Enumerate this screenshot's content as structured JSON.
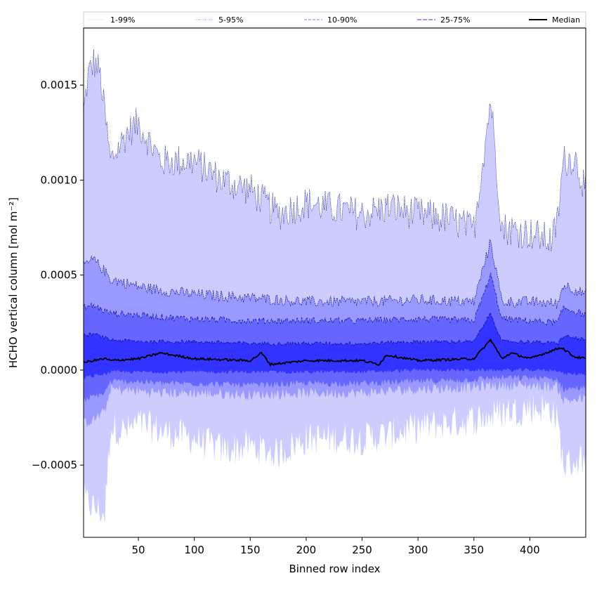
{
  "chart_data": {
    "type": "area",
    "title": "",
    "xlabel": "Binned row index",
    "ylabel": "HCHO vertical column [mol m⁻²]",
    "xlim": [
      1,
      450
    ],
    "ylim": [
      -0.00088,
      0.0018
    ],
    "x_ticks": [
      50,
      100,
      150,
      200,
      250,
      300,
      350,
      400
    ],
    "x_tick_labels": [
      "50",
      "100",
      "150",
      "200",
      "250",
      "300",
      "350",
      "400"
    ],
    "y_ticks": [
      -0.0005,
      0.0,
      0.0005,
      0.001,
      0.0015
    ],
    "y_tick_labels": [
      "−0.0005",
      "0.0000",
      "0.0005",
      "0.0010",
      "0.0015"
    ],
    "legend_position": "top",
    "grid": false,
    "colors": {
      "band_1_99": "#ccccff",
      "band_5_95": "#9999ff",
      "band_10_90": "#6666ff",
      "band_25_75": "#3333ff",
      "median": "#000000",
      "band_edges": "#000080"
    },
    "bands": [
      {
        "name": "1-99%",
        "x": [
          1,
          5,
          10,
          15,
          20,
          25,
          40,
          50,
          70,
          100,
          125,
          150,
          175,
          200,
          225,
          250,
          275,
          300,
          325,
          350,
          365,
          375,
          400,
          420,
          425,
          430,
          440,
          450
        ],
        "lower": [
          -0.00068,
          -0.0007,
          -0.00072,
          -0.00074,
          -0.00076,
          -0.0003,
          -0.00032,
          -0.00028,
          -0.00032,
          -0.00036,
          -0.00042,
          -0.0004,
          -0.00044,
          -0.00036,
          -0.00036,
          -0.00036,
          -0.00034,
          -0.0003,
          -0.00028,
          -0.00026,
          -0.00024,
          -0.00022,
          -0.0002,
          -0.0002,
          -0.00028,
          -0.0005,
          -0.00048,
          -0.00046
        ],
        "upper": [
          0.00135,
          0.00155,
          0.00162,
          0.00158,
          0.00135,
          0.0011,
          0.00125,
          0.0013,
          0.0011,
          0.0011,
          0.001,
          0.00095,
          0.00082,
          0.00088,
          0.00085,
          0.00082,
          0.00086,
          0.00082,
          0.0008,
          0.00074,
          0.00143,
          0.00075,
          0.00072,
          0.00068,
          0.0008,
          0.0011,
          0.00112,
          0.00095
        ]
      },
      {
        "name": "5-95%",
        "x": [
          1,
          10,
          20,
          25,
          50,
          70,
          100,
          150,
          200,
          250,
          300,
          350,
          365,
          375,
          400,
          425,
          430,
          450
        ],
        "lower": [
          -0.00028,
          -0.00026,
          -0.00022,
          -0.0001,
          -0.00011,
          -0.00012,
          -0.00012,
          -0.00013,
          -0.00012,
          -0.00012,
          -0.0001,
          -9e-05,
          -8e-05,
          -8e-05,
          -8e-05,
          -9e-05,
          -0.00016,
          -0.00015
        ],
        "upper": [
          0.00055,
          0.00058,
          0.00052,
          0.00048,
          0.00044,
          0.00042,
          0.0004,
          0.00038,
          0.00036,
          0.00036,
          0.00037,
          0.00036,
          0.00068,
          0.00036,
          0.00036,
          0.00035,
          0.00045,
          0.0004
        ]
      },
      {
        "name": "10-90%",
        "x": [
          1,
          10,
          20,
          25,
          50,
          70,
          100,
          150,
          200,
          250,
          300,
          350,
          365,
          375,
          400,
          425,
          430,
          450
        ],
        "lower": [
          -0.00016,
          -0.00014,
          -0.00012,
          -6e-05,
          -6e-05,
          -7e-05,
          -7e-05,
          -8e-05,
          -7e-05,
          -7e-05,
          -6e-05,
          -5e-05,
          -4e-05,
          -4e-05,
          -4e-05,
          -5e-05,
          -0.0001,
          -9e-05
        ],
        "upper": [
          0.00033,
          0.00034,
          0.00031,
          0.0003,
          0.00029,
          0.00028,
          0.00027,
          0.00026,
          0.00026,
          0.00026,
          0.00027,
          0.00026,
          0.0005,
          0.00027,
          0.00026,
          0.00025,
          0.00033,
          0.00029
        ]
      },
      {
        "name": "25-75%",
        "x": [
          1,
          10,
          20,
          25,
          50,
          70,
          100,
          150,
          200,
          250,
          300,
          350,
          365,
          375,
          400,
          425,
          430,
          450
        ],
        "lower": [
          -4e-05,
          -3e-05,
          -2e-05,
          -1e-05,
          -1e-05,
          -1e-05,
          -1e-05,
          -1e-05,
          -1e-05,
          -1e-05,
          0.0,
          0.0,
          0.0,
          0.0,
          0.0,
          0.0,
          -2e-05,
          -2e-05
        ],
        "upper": [
          0.00018,
          0.00019,
          0.00017,
          0.00016,
          0.00015,
          0.00015,
          0.00015,
          0.00014,
          0.00014,
          0.00014,
          0.00015,
          0.00015,
          0.0003,
          0.00015,
          0.00015,
          0.00014,
          0.00018,
          0.00016
        ]
      }
    ],
    "median": {
      "name": "Median",
      "x": [
        1,
        10,
        20,
        25,
        50,
        70,
        100,
        150,
        160,
        168,
        200,
        250,
        265,
        272,
        300,
        350,
        365,
        375,
        383,
        400,
        428,
        440,
        450
      ],
      "y": [
        4e-05,
        5e-05,
        6e-05,
        5e-05,
        6e-05,
        9e-05,
        6e-05,
        5e-05,
        9e-05,
        3e-05,
        5e-05,
        5e-05,
        3e-05,
        8e-05,
        5e-05,
        6e-05,
        0.00016,
        6e-05,
        9e-05,
        6e-05,
        0.00012,
        7e-05,
        6e-05
      ]
    }
  }
}
